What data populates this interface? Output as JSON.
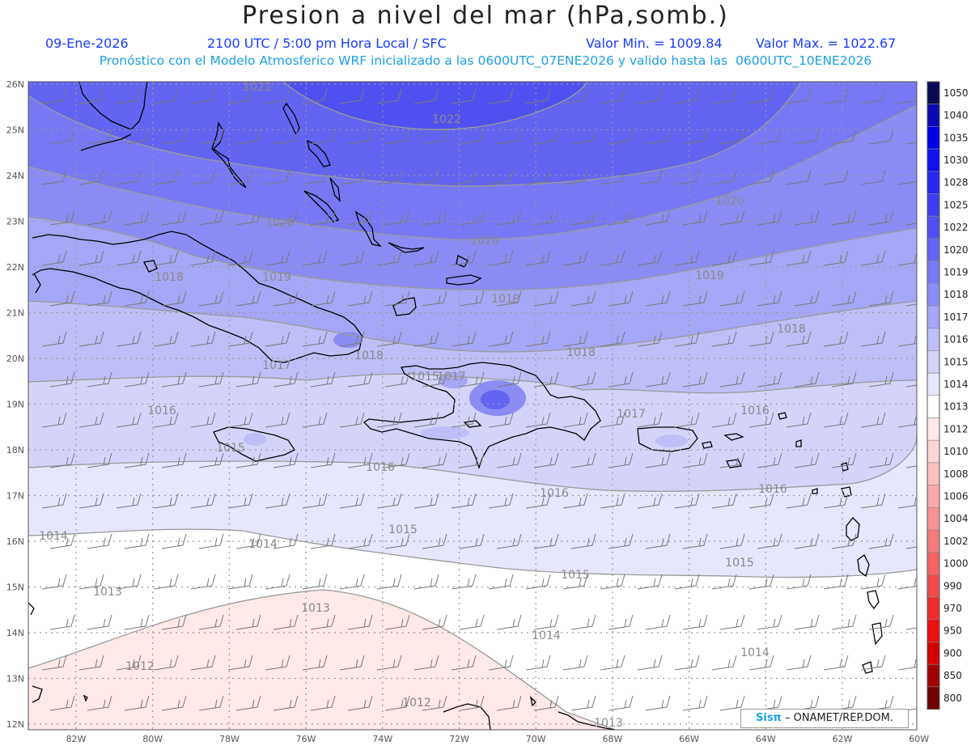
{
  "header": {
    "title": "Presion a nivel del mar (hPa,somb.)",
    "date": "09-Ene-2026",
    "time": "2100 UTC / 5:00 pm Hora Local / SFC",
    "min": "Valor Min. = 1009.84",
    "max": "Valor Max. = 1022.67",
    "model_line": "Pronóstico con el Modelo Atmosferico WRF inicializado a las 0600UTC_07ENE2026 y valido hasta las  0600UTC_10ENE2026"
  },
  "axes": {
    "lat_labels": [
      "26N",
      "25N",
      "24N",
      "23N",
      "22N",
      "21N",
      "20N",
      "19N",
      "18N",
      "17N",
      "16N",
      "15N",
      "14N",
      "13N",
      "12N"
    ],
    "lon_labels": [
      "82W",
      "80W",
      "78W",
      "76W",
      "74W",
      "72W",
      "70W",
      "68W",
      "66W",
      "64W",
      "62W",
      "60W"
    ]
  },
  "colorbar": {
    "levels": [
      "1050",
      "1040",
      "1035",
      "1030",
      "1028",
      "1025",
      "1022",
      "1020",
      "1019",
      "1018",
      "1017",
      "1016",
      "1015",
      "1014",
      "1013",
      "1012",
      "1010",
      "1008",
      "1006",
      "1004",
      "1002",
      "1000",
      "990",
      "970",
      "950",
      "900",
      "850",
      "800"
    ],
    "colors": [
      "#0a0a55",
      "#0a0ab4",
      "#0000e6",
      "#1010f0",
      "#2828f0",
      "#3e3ef2",
      "#5050f0",
      "#6464f2",
      "#7878f4",
      "#8c8cf4",
      "#a6a6f6",
      "#bebef8",
      "#d4d4fa",
      "#e6e6fc",
      "#ffffff",
      "#ffe8e8",
      "#fcd4d4",
      "#fac0c0",
      "#f8aaaa",
      "#f69494",
      "#f47c7c",
      "#f26464",
      "#f04c4c",
      "#ee2c2c",
      "#ec1010",
      "#d20000",
      "#a00000",
      "#700000"
    ]
  },
  "isobar_labels": [
    "1022",
    "1022",
    "1020",
    "1020",
    "1020",
    "1019",
    "1019",
    "1019",
    "1018",
    "1018",
    "1018",
    "1018",
    "1017",
    "1017",
    "1017",
    "1016",
    "1016",
    "1016",
    "1016",
    "1016",
    "1015",
    "1015",
    "1015",
    "1015",
    "1015",
    "1014",
    "1014",
    "1014",
    "1014",
    "1013",
    "1013",
    "1013",
    "1012",
    "1012"
  ],
  "credit": {
    "sis": "Sisπ",
    "rest": " – ONAMET/REP.DOM."
  }
}
